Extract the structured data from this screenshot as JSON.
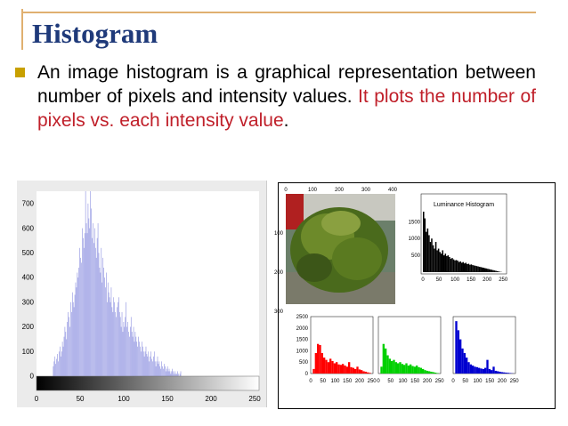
{
  "slide": {
    "title": "Histogram",
    "bullet_text_black": "An image histogram is a graphical representation between number of pixels and intensity values. ",
    "bullet_text_red": "It plots the number of pixels vs. each intensity value",
    "bullet_text_end": "."
  },
  "chart_data": [
    {
      "type": "bar",
      "title": "",
      "xlim": [
        0,
        255
      ],
      "ylim": [
        0,
        750
      ],
      "x_ticks": [
        "0",
        "50",
        "100",
        "150",
        "200",
        "250"
      ],
      "y_ticks": [
        "0",
        "100",
        "200",
        "300",
        "400",
        "500",
        "600",
        "700"
      ],
      "bar_color": "#8c90e0",
      "grid": false,
      "values": [
        0,
        0,
        0,
        0,
        0,
        0,
        0,
        0,
        0,
        0,
        0,
        0,
        0,
        0,
        0,
        0,
        0,
        0,
        0,
        0,
        40,
        60,
        80,
        50,
        70,
        90,
        60,
        100,
        120,
        80,
        100,
        140,
        120,
        160,
        200,
        180,
        150,
        220,
        260,
        240,
        200,
        300,
        260,
        340,
        300,
        280,
        330,
        380,
        360,
        420,
        400,
        440,
        520,
        480,
        460,
        600,
        560,
        520,
        580,
        750,
        620,
        580,
        700,
        640,
        600,
        750,
        680,
        560,
        620,
        540,
        600,
        520,
        480,
        560,
        620,
        500,
        440,
        420,
        520,
        380,
        480,
        440,
        400,
        360,
        420,
        300,
        380,
        340,
        320,
        300,
        360,
        280,
        260,
        320,
        300,
        260,
        240,
        280,
        300,
        320,
        260,
        240,
        200,
        260,
        180,
        220,
        200,
        240,
        300,
        200,
        220,
        180,
        160,
        200,
        240,
        180,
        160,
        200,
        140,
        180,
        160,
        140,
        120,
        160,
        140,
        120,
        100,
        140,
        120,
        100,
        80,
        100,
        120,
        90,
        80,
        100,
        60,
        80,
        100,
        70,
        60,
        80,
        100,
        60,
        40,
        60,
        80,
        50,
        60,
        40,
        30,
        60,
        40,
        30,
        50,
        40,
        20,
        30,
        40,
        20,
        30,
        20,
        10,
        20,
        30,
        20,
        10,
        20,
        10,
        10,
        20,
        10,
        0,
        10,
        20,
        0,
        0,
        0,
        0,
        0,
        0,
        0,
        0,
        0,
        0,
        0,
        0,
        0,
        0,
        0,
        0,
        0,
        0,
        0,
        0,
        0,
        0,
        0,
        0,
        0,
        0,
        0,
        0,
        0,
        0,
        0,
        0,
        0,
        0,
        0,
        0,
        0,
        0,
        0,
        0,
        0,
        0,
        0,
        0,
        0,
        0,
        0,
        0,
        0,
        0,
        0,
        0,
        0,
        0,
        0,
        0,
        0,
        0,
        0,
        0,
        0,
        0,
        0,
        0,
        0,
        0,
        0,
        0,
        0,
        0,
        0,
        0,
        0,
        0,
        0,
        0,
        0,
        0,
        0,
        0,
        0,
        0,
        0,
        0,
        0,
        0,
        0,
        0,
        0,
        0,
        0,
        0,
        0,
        0
      ]
    },
    {
      "type": "bar",
      "title": "Luminance Histogram",
      "xlim": [
        0,
        255
      ],
      "ylim": [
        0,
        1800
      ],
      "x_ticks": [
        "0",
        "50",
        "100",
        "150",
        "200",
        "250"
      ],
      "y_ticks": [
        "500",
        "1000",
        "1500"
      ],
      "bar_color": "#000000",
      "values": [
        1800,
        1600,
        1200,
        1300,
        1100,
        900,
        1000,
        800,
        700,
        900,
        650,
        700,
        600,
        550,
        650,
        500,
        550,
        480,
        500,
        450,
        400,
        420,
        380,
        350,
        360,
        340,
        300,
        320,
        280,
        300,
        260,
        280,
        240,
        250,
        220,
        230,
        210,
        200,
        190,
        180,
        170,
        160,
        150,
        140,
        130,
        120,
        110,
        100,
        90,
        80,
        70,
        60,
        50,
        40,
        30,
        20,
        10,
        5,
        0,
        0
      ]
    },
    {
      "type": "bar",
      "title": "",
      "xlim": [
        0,
        255
      ],
      "ylim": [
        0,
        2500
      ],
      "x_ticks": [
        "0",
        "50",
        "100",
        "150",
        "200",
        "250"
      ],
      "y_ticks": [
        "0",
        "500",
        "1000",
        "1500",
        "2000",
        "2500"
      ],
      "bar_color": "#ff0000",
      "values": [
        0,
        200,
        900,
        1300,
        1250,
        900,
        700,
        600,
        500,
        650,
        550,
        450,
        500,
        400,
        380,
        420,
        350,
        300,
        500,
        280,
        250,
        200,
        300,
        180,
        150,
        100,
        80,
        50,
        30,
        0
      ]
    },
    {
      "type": "bar",
      "title": "",
      "xlim": [
        0,
        255
      ],
      "ylim": [
        0,
        2500
      ],
      "x_ticks": [
        "0",
        "50",
        "100",
        "150",
        "200",
        "250"
      ],
      "bar_color": "#00d000",
      "values": [
        0,
        300,
        1300,
        1100,
        800,
        650,
        550,
        600,
        500,
        450,
        500,
        420,
        380,
        450,
        350,
        400,
        330,
        300,
        350,
        280,
        250,
        200,
        150,
        120,
        100,
        80,
        60,
        40,
        20,
        0
      ]
    },
    {
      "type": "bar",
      "title": "",
      "xlim": [
        0,
        255
      ],
      "ylim": [
        0,
        2500
      ],
      "x_ticks": [
        "0",
        "50",
        "100",
        "150",
        "200",
        "250"
      ],
      "bar_color": "#0000d0",
      "values": [
        0,
        2300,
        1900,
        1500,
        1100,
        900,
        700,
        500,
        400,
        350,
        300,
        280,
        250,
        220,
        200,
        250,
        600,
        200,
        150,
        300,
        120,
        100,
        80,
        60,
        50,
        40,
        30,
        20,
        10,
        0
      ]
    }
  ],
  "photo": {
    "x_ticks": [
      "0",
      "100",
      "200",
      "300",
      "400"
    ],
    "y_ticks": [
      "100",
      "200",
      "300"
    ]
  }
}
